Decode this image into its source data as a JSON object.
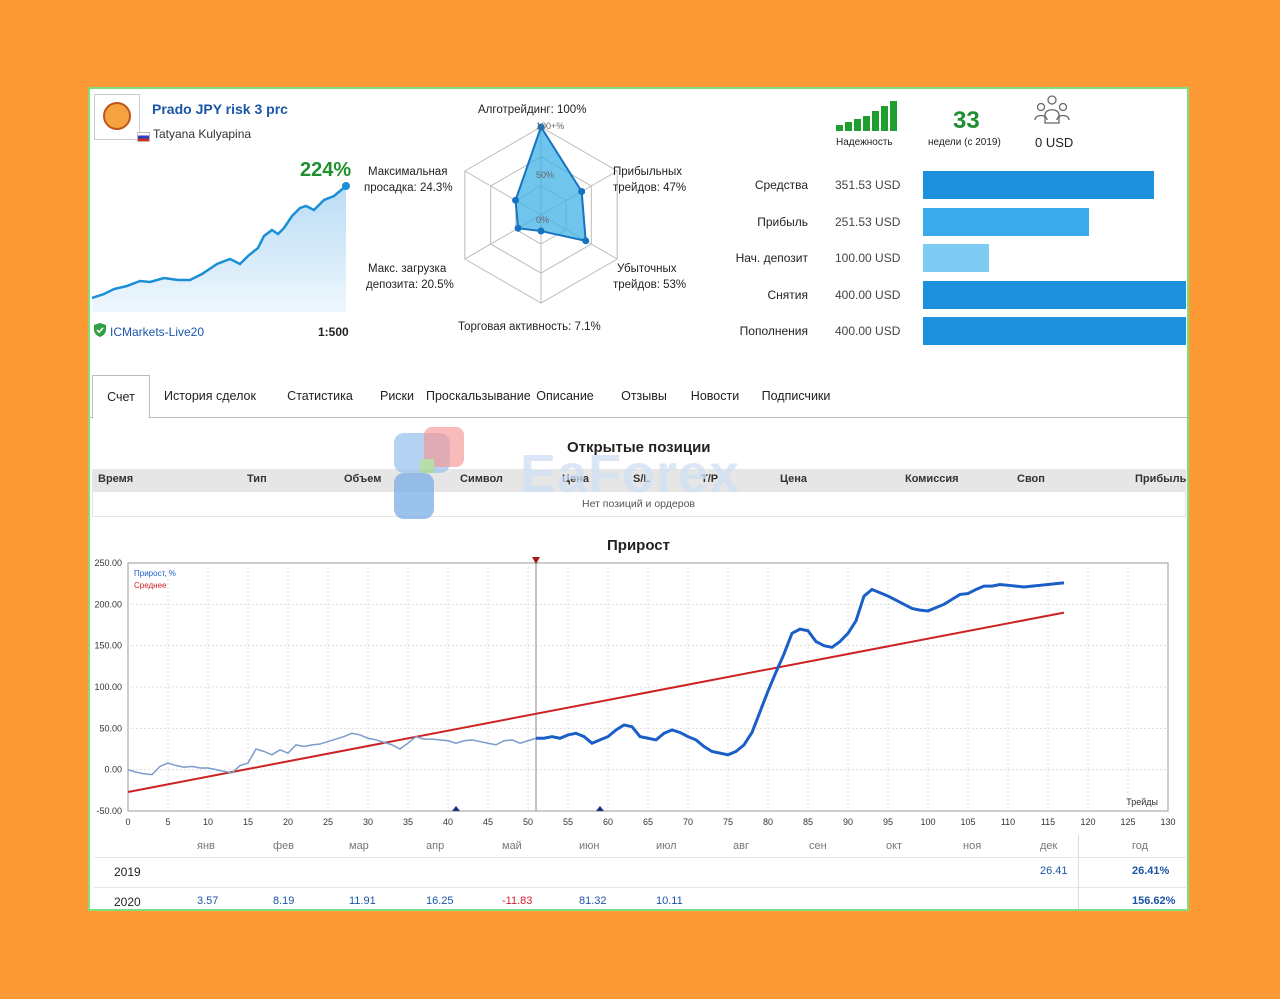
{
  "signal": {
    "title": "Prado JPY risk 3 prc",
    "author": "Tatyana Kulyapina",
    "growth": "224%",
    "broker": "ICMarkets-Live20",
    "leverage": "1:500"
  },
  "radar": {
    "top": "Алготрейдинг: 100%",
    "top_tick": "100+%",
    "tick_50": "50%",
    "tick_0": "0%",
    "max_dd_1": "Максимальная",
    "max_dd_2": "просадка: 24.3%",
    "profit_trades_1": "Прибыльных",
    "profit_trades_2": "трейдов: 47%",
    "max_load_1": "Макс. загрузка",
    "max_load_2": "депозита: 20.5%",
    "loss_trades_1": "Убыточных",
    "loss_trades_2": "трейдов: 53%",
    "activity": "Торговая активность: 7.1%",
    "values": [
      100,
      47,
      53,
      7.1,
      20.5,
      24.3
    ]
  },
  "stats": {
    "reliability_label": "Надежность",
    "weeks": "33",
    "weeks_label": "недели (с 2019)",
    "subscribers_usd": "0 USD"
  },
  "finance": [
    {
      "label": "Средства",
      "value": "351.53 USD",
      "color": "#1e90dc",
      "fraction": 0.88
    },
    {
      "label": "Прибыль",
      "value": "251.53 USD",
      "color": "#3aaaea",
      "fraction": 0.63
    },
    {
      "label": "Нач. депозит",
      "value": "100.00 USD",
      "color": "#7ecbf4",
      "fraction": 0.25
    },
    {
      "label": "Снятия",
      "value": "400.00 USD",
      "color": "#1e90dc",
      "fraction": 1.0
    },
    {
      "label": "Пополнения",
      "value": "400.00 USD",
      "color": "#1e90dc",
      "fraction": 1.0
    }
  ],
  "tabs": [
    "Счет",
    "История сделок",
    "Статистика",
    "Риски",
    "Проскальзывание",
    "Описание",
    "Отзывы",
    "Новости",
    "Подписчики"
  ],
  "positions": {
    "title": "Открытые позиции",
    "headers": [
      "Время",
      "Тип",
      "Объем",
      "Символ",
      "Цена",
      "S/L",
      "T/P",
      "Цена",
      "Комиссия",
      "Своп",
      "Прибыль"
    ],
    "empty": "Нет позиций и ордеров"
  },
  "watermark": "EaForex",
  "chart_data": {
    "type": "line",
    "title": "Прирост",
    "xlabel": "Трейды",
    "ylabel": "",
    "legend": [
      "Прирост, %",
      "Среднее"
    ],
    "legend_position": "top-left",
    "xlim": [
      0,
      130
    ],
    "ylim": [
      -50,
      250
    ],
    "x_ticks": [
      0,
      5,
      10,
      15,
      20,
      25,
      30,
      35,
      40,
      45,
      50,
      55,
      60,
      65,
      70,
      75,
      80,
      85,
      90,
      95,
      100,
      105,
      110,
      115,
      120,
      125,
      130
    ],
    "y_ticks": [
      "250.00",
      "200.00",
      "150.00",
      "100.00",
      "50.00",
      "0.00",
      "-50.00"
    ],
    "grid": true,
    "marker_x": 51,
    "bottom_markers_x": [
      41,
      59
    ],
    "series": [
      {
        "name": "Прирост, %",
        "color": "#1a5fc8",
        "x": [
          0,
          1,
          2,
          3,
          4,
          5,
          6,
          7,
          8,
          9,
          10,
          11,
          12,
          13,
          14,
          15,
          16,
          17,
          18,
          19,
          20,
          21,
          22,
          23,
          24,
          25,
          26,
          27,
          28,
          29,
          30,
          31,
          32,
          33,
          34,
          35,
          36,
          37,
          38,
          39,
          40,
          41,
          42,
          43,
          44,
          45,
          46,
          47,
          48,
          49,
          50,
          51,
          52,
          53,
          54,
          55,
          56,
          57,
          58,
          59,
          60,
          61,
          62,
          63,
          64,
          65,
          66,
          67,
          68,
          69,
          70,
          71,
          72,
          73,
          74,
          75,
          76,
          77,
          78,
          79,
          80,
          81,
          82,
          83,
          84,
          85,
          86,
          87,
          88,
          89,
          90,
          91,
          92,
          93,
          94,
          95,
          96,
          97,
          98,
          99,
          100,
          101,
          102,
          103,
          104,
          105,
          106,
          107,
          108,
          109,
          110,
          111,
          112,
          113,
          114,
          115,
          116,
          117
        ],
        "y": [
          0,
          -3,
          -5,
          -6,
          4,
          8,
          5,
          3,
          4,
          2,
          2,
          0,
          -2,
          -4,
          5,
          8,
          25,
          22,
          18,
          24,
          20,
          30,
          28,
          30,
          31,
          34,
          37,
          40,
          44,
          42,
          38,
          36,
          33,
          30,
          25,
          32,
          40,
          37,
          37,
          36,
          35,
          32,
          35,
          36,
          34,
          32,
          30,
          35,
          36,
          32,
          35,
          38,
          38,
          40,
          38,
          42,
          44,
          40,
          32,
          36,
          40,
          48,
          54,
          52,
          40,
          38,
          36,
          44,
          48,
          45,
          40,
          36,
          28,
          22,
          20,
          18,
          22,
          30,
          45,
          70,
          95,
          118,
          140,
          165,
          170,
          168,
          155,
          150,
          148,
          155,
          165,
          180,
          210,
          218,
          214,
          210,
          205,
          200,
          195,
          193,
          192,
          196,
          200,
          206,
          212,
          213,
          218,
          222,
          222,
          224,
          223,
          222,
          221,
          222,
          223,
          224,
          225,
          226
        ],
        "x_use": "auto"
      },
      {
        "name": "Среднее",
        "color": "#cc2222",
        "x": [
          0,
          117
        ],
        "y": [
          -27,
          190
        ]
      }
    ]
  },
  "yearly": {
    "months": [
      "янв",
      "фев",
      "мар",
      "апр",
      "май",
      "июн",
      "июл",
      "авг",
      "сен",
      "окт",
      "ноя",
      "дек",
      "год"
    ],
    "rows": [
      {
        "year": "2019",
        "values": [
          "",
          "",
          "",
          "",
          "",
          "",
          "",
          "",
          "",
          "",
          "",
          "26.41",
          "26.41%"
        ]
      },
      {
        "year": "2020",
        "values": [
          "3.57",
          "8.19",
          "11.91",
          "16.25",
          "-11.83",
          "81.32",
          "10.11",
          "",
          "",
          "",
          "",
          "",
          "156.62%"
        ]
      }
    ]
  }
}
